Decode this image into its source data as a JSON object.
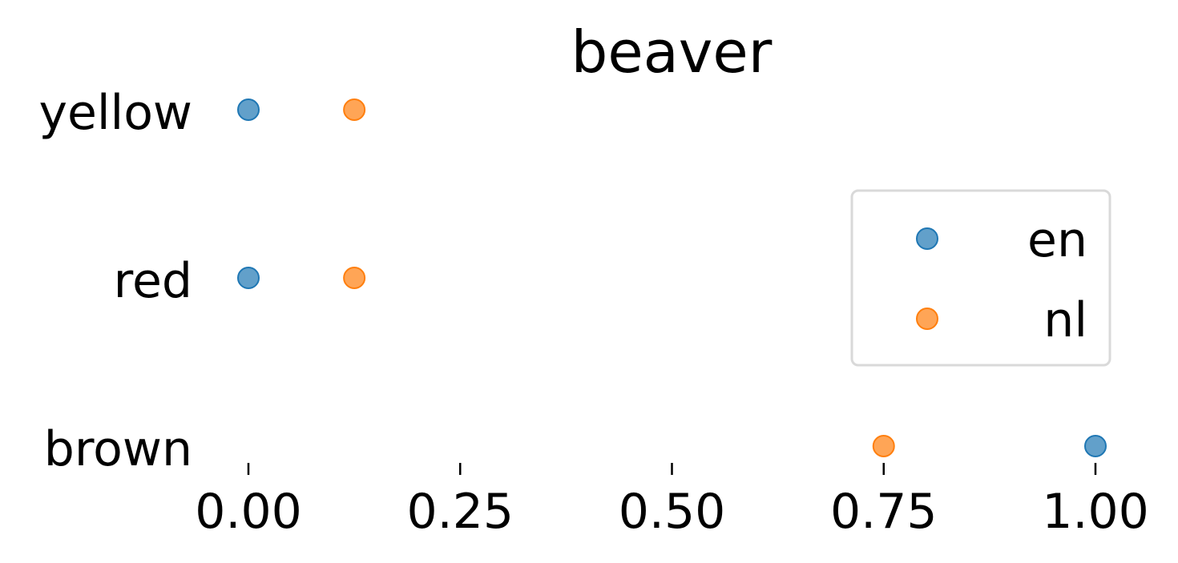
{
  "chart_data": {
    "type": "scatter",
    "title": "beaver",
    "xlabel": "",
    "ylabel": "",
    "categories": [
      "brown",
      "red",
      "yellow"
    ],
    "x_ticks": [
      "0.00",
      "0.25",
      "0.50",
      "0.75",
      "1.00"
    ],
    "xlim": [
      0.0,
      1.0
    ],
    "grid": false,
    "legend_position": "center-right",
    "series": [
      {
        "name": "en",
        "color": "#1f77b4",
        "values": [
          1.0,
          0.0,
          0.0
        ]
      },
      {
        "name": "nl",
        "color": "#ff7f0e",
        "values": [
          0.75,
          0.125,
          0.125
        ]
      }
    ]
  }
}
